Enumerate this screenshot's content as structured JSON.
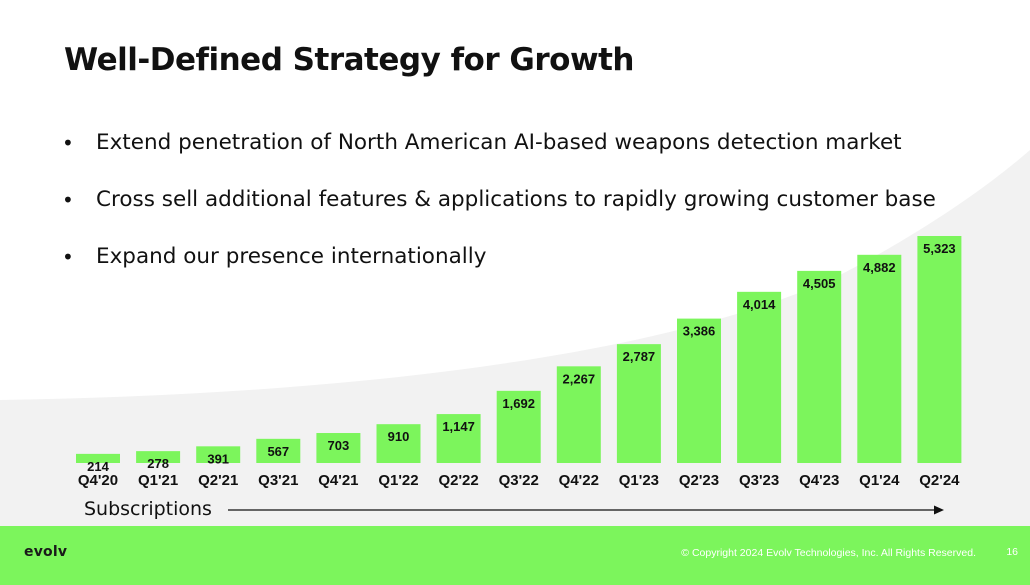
{
  "slide": {
    "title": "Well-Defined Strategy for Growth",
    "bullets": [
      "Extend penetration of North American AI-based weapons detection market",
      "Cross sell additional features & applications to rapidly growing customer base",
      "Expand our presence internationally"
    ],
    "bullet_glyph": "•"
  },
  "chart_data": {
    "type": "bar",
    "categories": [
      "Q4'20",
      "Q1'21",
      "Q2'21",
      "Q3'21",
      "Q4'21",
      "Q1'22",
      "Q2'22",
      "Q3'22",
      "Q4'22",
      "Q1'23",
      "Q2'23",
      "Q3'23",
      "Q4'23",
      "Q1'24",
      "Q2'24"
    ],
    "values": [
      214,
      278,
      391,
      567,
      703,
      910,
      1147,
      1692,
      2267,
      2787,
      3386,
      4014,
      4505,
      4882,
      5323
    ],
    "value_labels": [
      "214",
      "278",
      "391",
      "567",
      "703",
      "910",
      "1,147",
      "1,692",
      "2,267",
      "2,787",
      "3,386",
      "4,014",
      "4,505",
      "4,882",
      "5,323"
    ],
    "xlabel": "Subscriptions",
    "ylim": [
      0,
      5323
    ],
    "grid": false,
    "bar_color": "#7cf55c",
    "legend": "none"
  },
  "footer": {
    "logo": "evolv",
    "copyright": "© Copyright 2024 Evolv Technologies, Inc. All Rights Reserved.",
    "page_number": "16"
  },
  "colors": {
    "accent_green": "#7cf55c",
    "background_swoosh": "#f2f2f2",
    "text": "#1a1a1a"
  }
}
